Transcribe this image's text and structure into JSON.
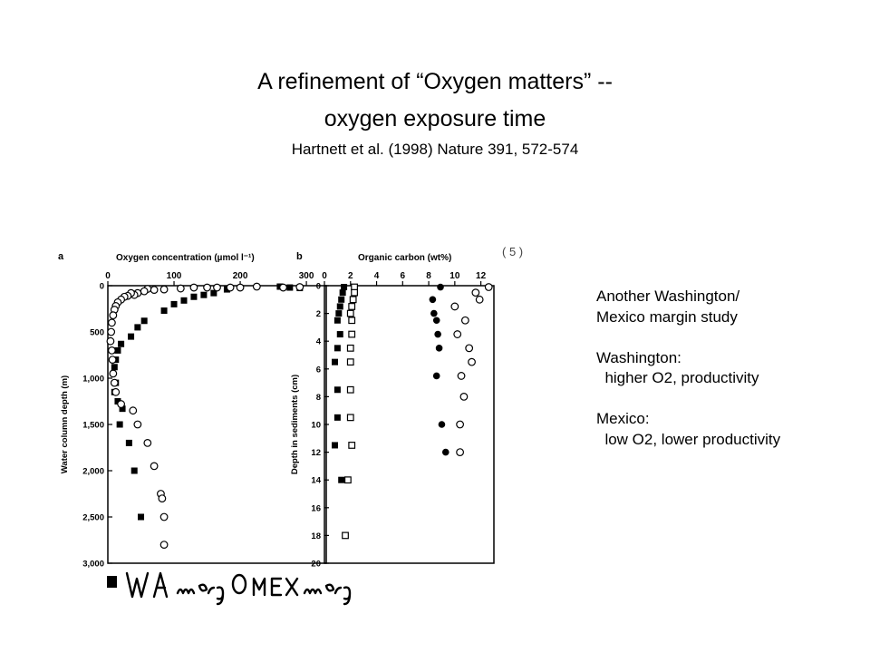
{
  "slide": {
    "title_line1": "A refinement of “Oxygen matters” --",
    "title_line2": "oxygen exposure time",
    "citation": "Hartnett et al. (1998) Nature 391, 572-574"
  },
  "notes": [
    "Another Washington/",
    "Mexico margin study",
    "",
    "Washington:",
    "  higher O2, productivity",
    "",
    "Mexico:",
    "  low O2, lower productivity"
  ],
  "scan_mark": "( 5 )",
  "handwritten_legend": {
    "wa": "WA marg",
    "mex": "MEX marg"
  },
  "colors": {
    "ink": "#000000",
    "background": "#ffffff"
  },
  "chart_data": [
    {
      "type": "scatter",
      "panel_label": "a",
      "title": "Oxygen concentration (µmol l⁻¹)",
      "xlabel": "Oxygen concentration (µmol l⁻¹)",
      "ylabel": "Water column depth (m)",
      "xlim": [
        0,
        330
      ],
      "ylim": [
        3000,
        0
      ],
      "x_ticks": [
        "0",
        "100",
        "200",
        "300"
      ],
      "y_ticks": [
        "0",
        "500",
        "1,000",
        "1,500",
        "2,000",
        "2,500",
        "3,000"
      ],
      "x_tick_values": [
        0,
        100,
        200,
        300
      ],
      "y_tick_values": [
        0,
        500,
        1000,
        1500,
        2000,
        2500,
        3000
      ],
      "series": [
        {
          "name": "WA marg",
          "marker": "filled-square",
          "points": [
            [
              260,
              10
            ],
            [
              275,
              20
            ],
            [
              290,
              25
            ],
            [
              180,
              40
            ],
            [
              160,
              80
            ],
            [
              145,
              100
            ],
            [
              130,
              120
            ],
            [
              115,
              160
            ],
            [
              100,
              200
            ],
            [
              85,
              270
            ],
            [
              55,
              380
            ],
            [
              45,
              450
            ],
            [
              35,
              550
            ],
            [
              20,
              630
            ],
            [
              15,
              700
            ],
            [
              12,
              800
            ],
            [
              10,
              880
            ],
            [
              12,
              1050
            ],
            [
              10,
              1150
            ],
            [
              15,
              1250
            ],
            [
              22,
              1330
            ],
            [
              18,
              1500
            ],
            [
              32,
              1700
            ],
            [
              40,
              2000
            ],
            [
              50,
              2500
            ]
          ]
        },
        {
          "name": "MEX marg",
          "marker": "open-circle",
          "points": [
            [
              290,
              15
            ],
            [
              265,
              20
            ],
            [
              225,
              10
            ],
            [
              200,
              20
            ],
            [
              185,
              20
            ],
            [
              165,
              20
            ],
            [
              150,
              20
            ],
            [
              130,
              20
            ],
            [
              110,
              30
            ],
            [
              85,
              40
            ],
            [
              70,
              45
            ],
            [
              60,
              35
            ],
            [
              55,
              60
            ],
            [
              45,
              80
            ],
            [
              40,
              100
            ],
            [
              35,
              80
            ],
            [
              30,
              110
            ],
            [
              25,
              120
            ],
            [
              20,
              150
            ],
            [
              15,
              180
            ],
            [
              12,
              220
            ],
            [
              10,
              260
            ],
            [
              8,
              320
            ],
            [
              6,
              400
            ],
            [
              5,
              500
            ],
            [
              4,
              600
            ],
            [
              6,
              700
            ],
            [
              7,
              800
            ],
            [
              8,
              950
            ],
            [
              10,
              1050
            ],
            [
              12,
              1150
            ],
            [
              20,
              1280
            ],
            [
              38,
              1350
            ],
            [
              45,
              1500
            ],
            [
              60,
              1700
            ],
            [
              70,
              1950
            ],
            [
              80,
              2250
            ],
            [
              82,
              2300
            ],
            [
              85,
              2500
            ],
            [
              85,
              2800
            ]
          ]
        }
      ]
    },
    {
      "type": "scatter",
      "panel_label": "b",
      "title": "Organic carbon (wt%)",
      "xlabel": "Organic carbon (wt%)",
      "ylabel": "Depth in sediments (cm)",
      "xlim": [
        0,
        13
      ],
      "ylim": [
        20,
        0
      ],
      "x_ticks": [
        "0",
        "2",
        "4",
        "6",
        "8",
        "10",
        "12"
      ],
      "y_ticks": [
        "0",
        "2",
        "4",
        "6",
        "8",
        "10",
        "12",
        "14",
        "16",
        "18",
        "20"
      ],
      "x_tick_values": [
        0,
        2,
        4,
        6,
        8,
        10,
        12
      ],
      "y_tick_values": [
        0,
        2,
        4,
        6,
        8,
        10,
        12,
        14,
        16,
        18,
        20
      ],
      "series": [
        {
          "name": "WA marg (open square)",
          "marker": "open-square",
          "points": [
            [
              2.3,
              0.1
            ],
            [
              2.3,
              0.5
            ],
            [
              2.2,
              1.0
            ],
            [
              2.1,
              1.5
            ],
            [
              2.0,
              2.0
            ],
            [
              2.1,
              2.5
            ],
            [
              2.1,
              3.5
            ],
            [
              2.0,
              4.5
            ],
            [
              2.0,
              5.5
            ],
            [
              2.0,
              7.5
            ],
            [
              2.0,
              9.5
            ],
            [
              2.1,
              11.5
            ],
            [
              1.8,
              14.0
            ],
            [
              1.6,
              18.0
            ]
          ]
        },
        {
          "name": "WA marg (filled square)",
          "marker": "filled-square",
          "points": [
            [
              1.5,
              0.1
            ],
            [
              1.4,
              0.5
            ],
            [
              1.3,
              1.0
            ],
            [
              1.2,
              1.5
            ],
            [
              1.1,
              2.0
            ],
            [
              1.0,
              2.5
            ],
            [
              1.2,
              3.5
            ],
            [
              1.0,
              4.5
            ],
            [
              0.8,
              5.5
            ],
            [
              1.0,
              7.5
            ],
            [
              1.0,
              9.5
            ],
            [
              0.8,
              11.5
            ],
            [
              1.3,
              14.0
            ]
          ]
        },
        {
          "name": "MEX marg (filled circle)",
          "marker": "filled-circle",
          "points": [
            [
              8.9,
              0.1
            ],
            [
              8.3,
              1.0
            ],
            [
              8.4,
              2.0
            ],
            [
              8.6,
              2.5
            ],
            [
              8.7,
              3.5
            ],
            [
              8.8,
              4.5
            ],
            [
              8.6,
              6.5
            ],
            [
              9.0,
              10.0
            ],
            [
              9.3,
              12.0
            ]
          ]
        },
        {
          "name": "MEX marg (open circle)",
          "marker": "open-circle",
          "points": [
            [
              12.6,
              0.1
            ],
            [
              11.6,
              0.5
            ],
            [
              11.9,
              1.0
            ],
            [
              10.0,
              1.5
            ],
            [
              10.8,
              2.5
            ],
            [
              10.2,
              3.5
            ],
            [
              11.1,
              4.5
            ],
            [
              11.3,
              5.5
            ],
            [
              10.5,
              6.5
            ],
            [
              10.7,
              8.0
            ],
            [
              10.4,
              10.0
            ],
            [
              10.4,
              12.0
            ]
          ]
        }
      ]
    }
  ]
}
